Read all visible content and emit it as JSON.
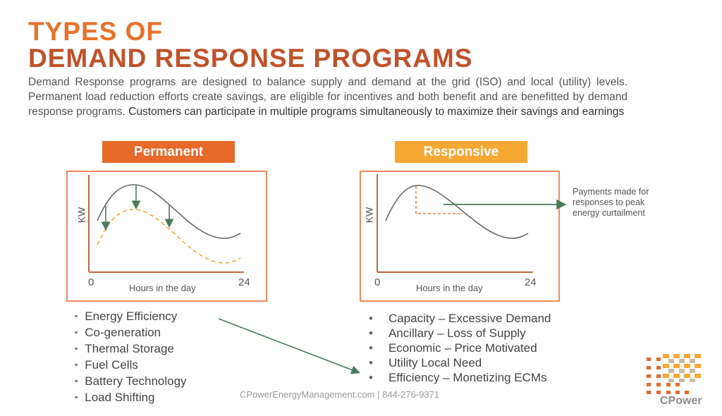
{
  "title": {
    "line1": "TYPES OF",
    "line2": "DEMAND RESPONSE PROGRAMS"
  },
  "intro": {
    "text": "Demand Response programs are designed to balance supply and demand at the grid (ISO) and local (utility) levels. Permanent load reduction efforts create savings, are eligible for incentives and both benefit and are benefitted by demand response programs.",
    "emphasis": " Customers can participate in multiple programs simultaneously to maximize their savings and earnings"
  },
  "permanent": {
    "label": "Permanent",
    "color": "#e8692a",
    "chart": {
      "ylabel": "KW",
      "xlabel": "Hours in the day",
      "x_start": "0",
      "x_end": "24"
    },
    "items": [
      "Energy Efficiency",
      "Co-generation",
      "Thermal Storage",
      "Fuel Cells",
      "Battery Technology",
      "Load Shifting"
    ]
  },
  "responsive": {
    "label": "Responsive",
    "color": "#f7a833",
    "chart": {
      "ylabel": "KW",
      "xlabel": "Hours in the day",
      "x_start": "0",
      "x_end": "24"
    },
    "note": "Payments made for responses to peak energy curtailment",
    "items": [
      "Capacity – Excessive Demand",
      "Ancillary – Loss of Supply",
      "Economic – Price Motivated",
      "Utility Local Need",
      "Efficiency – Monetizing ECMs"
    ]
  },
  "footer": {
    "website": "CPowerEnergyManagement.com",
    "separator": " | ",
    "phone": "844-276-9371"
  },
  "logo": {
    "text": "CPower"
  },
  "colors": {
    "title_orange": "#e8722a",
    "title_rust": "#c0522a",
    "arrow_green": "#4a7a5a",
    "box_border": "#ef8a5c"
  }
}
